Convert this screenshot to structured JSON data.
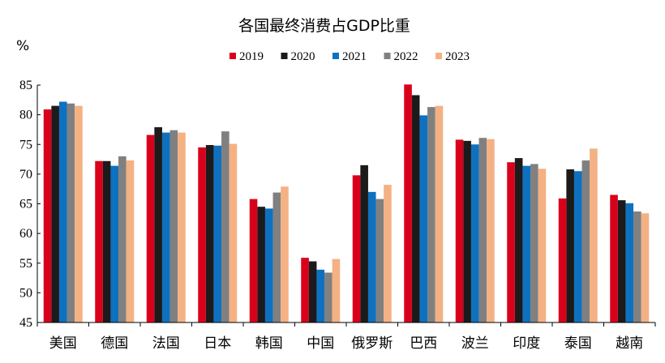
{
  "chart_data": {
    "type": "bar",
    "title": "各国最终消费占GDP比重",
    "ylabel": "%",
    "xlabel": "",
    "ylim": [
      45,
      85
    ],
    "yticks": [
      45,
      50,
      55,
      60,
      65,
      70,
      75,
      80,
      85
    ],
    "grid": false,
    "legend_position": "top",
    "categories": [
      "美国",
      "德国",
      "法国",
      "日本",
      "韩国",
      "中国",
      "俄罗斯",
      "巴西",
      "波兰",
      "印度",
      "泰国",
      "越南"
    ],
    "series": [
      {
        "name": "2019",
        "color": "#d9001b",
        "values": [
          80.9,
          72.2,
          76.6,
          74.5,
          65.8,
          55.9,
          69.8,
          85.1,
          75.8,
          72.0,
          65.9,
          66.5
        ]
      },
      {
        "name": "2020",
        "color": "#1c1a1a",
        "values": [
          81.5,
          72.2,
          77.9,
          74.9,
          64.5,
          55.3,
          71.5,
          83.3,
          75.6,
          72.7,
          70.8,
          65.6
        ]
      },
      {
        "name": "2021",
        "color": "#0e71c0",
        "values": [
          82.2,
          71.4,
          77.0,
          74.8,
          64.2,
          53.9,
          67.0,
          79.9,
          75.0,
          71.4,
          70.5,
          65.1
        ]
      },
      {
        "name": "2022",
        "color": "#808080",
        "values": [
          81.9,
          73.0,
          77.4,
          77.2,
          66.9,
          53.4,
          65.8,
          81.3,
          76.1,
          71.7,
          72.3,
          63.7
        ]
      },
      {
        "name": "2023",
        "color": "#f4b183",
        "values": [
          81.5,
          72.3,
          77.0,
          75.1,
          67.9,
          55.7,
          68.2,
          81.5,
          75.9,
          70.9,
          74.3,
          63.4
        ]
      }
    ]
  }
}
